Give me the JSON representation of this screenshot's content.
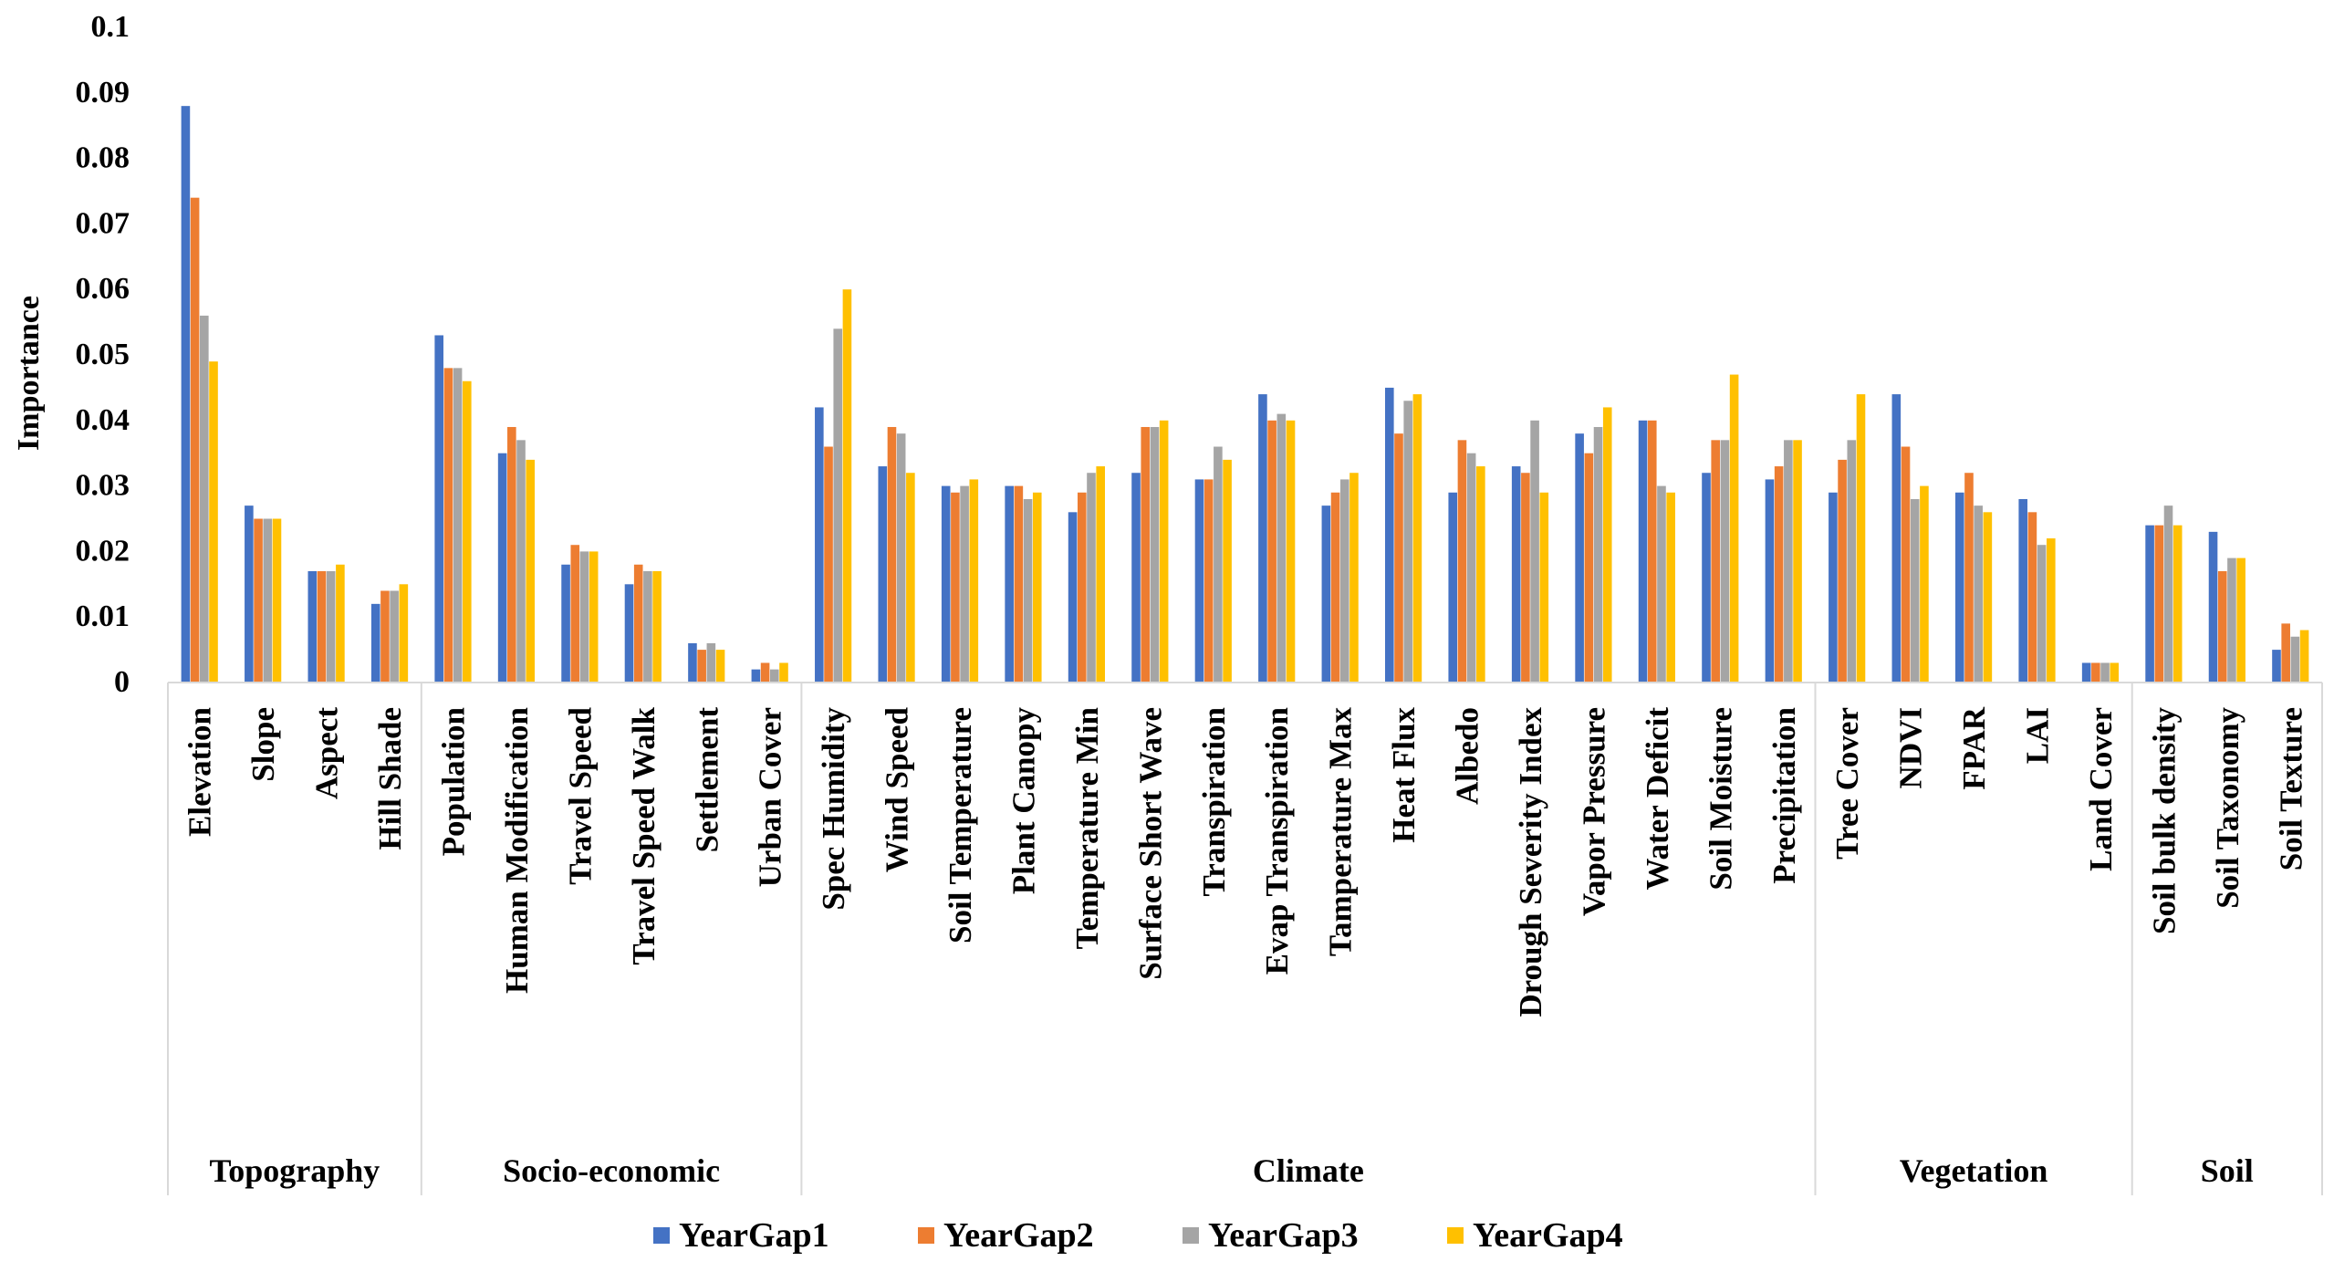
{
  "chart_data": {
    "type": "bar",
    "title": "",
    "xlabel": "",
    "ylabel": "Importance",
    "ylim": [
      0,
      0.1
    ],
    "yticks": [
      "0",
      "0.01",
      "0.02",
      "0.03",
      "0.04",
      "0.05",
      "0.06",
      "0.07",
      "0.08",
      "0.09",
      "0.1"
    ],
    "grid": false,
    "legend_position": "bottom",
    "categories": [
      "Elevation",
      "Slope",
      "Aspect",
      "Hill Shade",
      "Population",
      "Human Modification",
      "Travel Speed",
      "Travel Speed Walk",
      "Settlement",
      "Urban Cover",
      "Spec Humidity",
      "Wind Speed",
      "Soil Temperature",
      "Plant Canopy",
      "Temperature Min",
      "Surface Short Wave",
      "Transpiration",
      "Evap Transpiration",
      "Tamperature Max",
      "Heat Flux",
      "Albedo",
      "Drough Severity Index",
      "Vapor Pressure",
      "Water Deficit",
      "Soil Moisture",
      "Precipitation",
      "Tree Cover",
      "NDVI",
      "FPAR",
      "LAI",
      "Land Cover",
      "Soil bulk density",
      "Soil Taxonomy",
      "Soil Texture"
    ],
    "groups": [
      {
        "name": "Topography",
        "count": 4
      },
      {
        "name": "Socio-economic",
        "count": 6
      },
      {
        "name": "Climate",
        "count": 16
      },
      {
        "name": "Vegetation",
        "count": 5
      },
      {
        "name": "Soil",
        "count": 3
      }
    ],
    "series": [
      {
        "name": "YearGap1",
        "color": "#4472C4",
        "values": [
          0.088,
          0.027,
          0.017,
          0.012,
          0.053,
          0.035,
          0.018,
          0.015,
          0.006,
          0.002,
          0.042,
          0.033,
          0.03,
          0.03,
          0.026,
          0.032,
          0.031,
          0.044,
          0.027,
          0.045,
          0.029,
          0.033,
          0.038,
          0.04,
          0.032,
          0.031,
          0.029,
          0.044,
          0.029,
          0.028,
          0.003,
          0.024,
          0.023,
          0.005
        ]
      },
      {
        "name": "YearGap2",
        "color": "#ED7D31",
        "values": [
          0.074,
          0.025,
          0.017,
          0.014,
          0.048,
          0.039,
          0.021,
          0.018,
          0.005,
          0.003,
          0.036,
          0.039,
          0.029,
          0.03,
          0.029,
          0.039,
          0.031,
          0.04,
          0.029,
          0.038,
          0.037,
          0.032,
          0.035,
          0.04,
          0.037,
          0.033,
          0.034,
          0.036,
          0.032,
          0.026,
          0.003,
          0.024,
          0.017,
          0.009
        ]
      },
      {
        "name": "YearGap3",
        "color": "#A5A5A5",
        "values": [
          0.056,
          0.025,
          0.017,
          0.014,
          0.048,
          0.037,
          0.02,
          0.017,
          0.006,
          0.002,
          0.054,
          0.038,
          0.03,
          0.028,
          0.032,
          0.039,
          0.036,
          0.041,
          0.031,
          0.043,
          0.035,
          0.04,
          0.039,
          0.03,
          0.037,
          0.037,
          0.037,
          0.028,
          0.027,
          0.021,
          0.003,
          0.027,
          0.019,
          0.007
        ]
      },
      {
        "name": "YearGap4",
        "color": "#FFC000",
        "values": [
          0.049,
          0.025,
          0.018,
          0.015,
          0.046,
          0.034,
          0.02,
          0.017,
          0.005,
          0.003,
          0.06,
          0.032,
          0.031,
          0.029,
          0.033,
          0.04,
          0.034,
          0.04,
          0.032,
          0.044,
          0.033,
          0.029,
          0.042,
          0.029,
          0.047,
          0.037,
          0.044,
          0.03,
          0.026,
          0.022,
          0.003,
          0.024,
          0.019,
          0.008
        ]
      }
    ]
  }
}
